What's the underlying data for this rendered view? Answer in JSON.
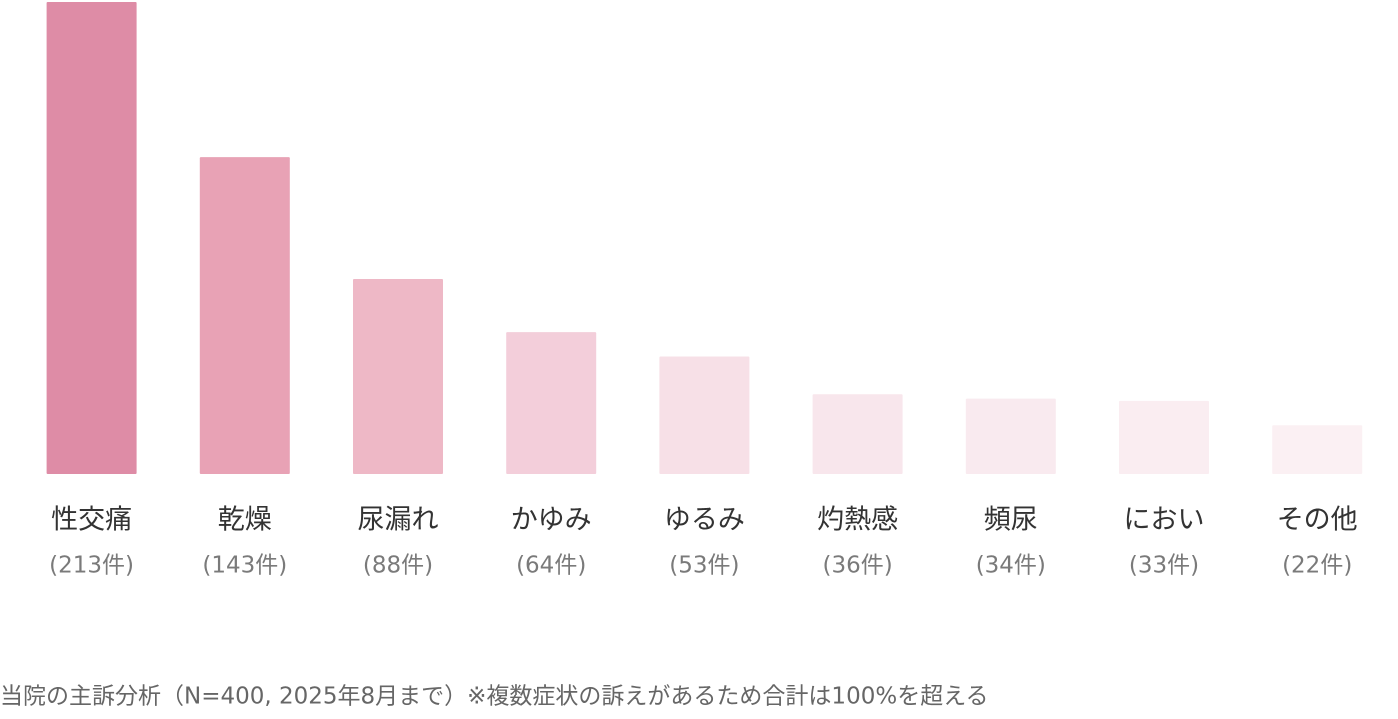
{
  "chart_data": {
    "type": "bar",
    "categories": [
      "性交痛",
      "乾燥",
      "尿漏れ",
      "かゆみ",
      "ゆるみ",
      "灼熱感",
      "頻尿",
      "におい",
      "その他"
    ],
    "values": [
      213,
      143,
      88,
      64,
      53,
      36,
      34,
      33,
      22
    ],
    "value_labels": [
      "(213件)",
      "(143件)",
      "(88件)",
      "(64件)",
      "(53件)",
      "(36件)",
      "(34件)",
      "(33件)",
      "(22件)"
    ],
    "colors": [
      "#de8ca6",
      "#e8a2b5",
      "#eeb8c6",
      "#f3ceda",
      "#f7e0e7",
      "#f8e6ec",
      "#f9eaef",
      "#faedf1",
      "#fbf0f3"
    ],
    "note": "当院の主訴分析（N=400, 2025年8月まで）※複数症状の訴えがあるため合計は100%を超える"
  }
}
